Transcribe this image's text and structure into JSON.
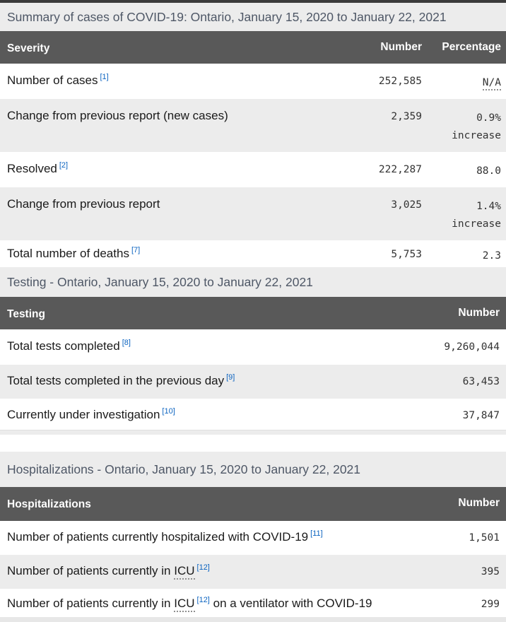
{
  "colors": {
    "header_bg": "#595959",
    "header_text": "#ffffff",
    "stripe_bg": "#ececec",
    "caption_text": "#4e5766",
    "link_blue": "#0c64c0",
    "body_text": "#1a1a1a",
    "number_text": "#333333",
    "top_strip": "#3b3b3b"
  },
  "summary_table": {
    "caption": "Summary of cases of COVID-19: Ontario, January 15, 2020 to January 22, 2021",
    "headers": {
      "col1": "Severity",
      "col2": "Number",
      "col3": "Percentage"
    },
    "rows": [
      {
        "label": "Number of cases",
        "footnote": "[1]",
        "number": "252,585",
        "percentage": "N/A"
      },
      {
        "label": "Change from previous report (new cases)",
        "number": "2,359",
        "percentage": "0.9%",
        "percentage_note": "increase"
      },
      {
        "label": "Resolved",
        "footnote": "[2]",
        "number": "222,287",
        "percentage": "88.0"
      },
      {
        "label": "Change from previous report",
        "number": "3,025",
        "percentage": "1.4%",
        "percentage_note": "increase"
      },
      {
        "label": "Total number of deaths",
        "footnote": "[7]",
        "number": "5,753",
        "percentage": "2.3"
      }
    ]
  },
  "testing_table": {
    "section_title": "Testing - Ontario, January 15, 2020 to January 22, 2021",
    "headers": {
      "col1": "Testing",
      "col2": "Number"
    },
    "rows": [
      {
        "label": "Total tests completed",
        "footnote": "[8]",
        "number": "9,260,044"
      },
      {
        "label": "Total tests completed in the previous day",
        "footnote": "[9]",
        "number": "63,453"
      },
      {
        "label": "Currently under investigation",
        "footnote": "[10]",
        "number": "37,847"
      }
    ]
  },
  "hospitalizations_table": {
    "section_title": "Hospitalizations - Ontario, January 15, 2020 to January 22, 2021",
    "headers": {
      "col1": "Hospitalizations",
      "col2": "Number"
    },
    "rows": [
      {
        "label": "Number of patients currently hospitalized with COVID-19",
        "footnote": "[11]",
        "number": "1,501"
      },
      {
        "label_pre": "Number of patients currently in",
        "abbr": "ICU",
        "footnote": "[12]",
        "number": "395"
      },
      {
        "label_pre": "Number of patients currently in",
        "abbr": "ICU",
        "footnote": "[12]",
        "label_post": "on a ventilator with COVID-19",
        "number": "299"
      }
    ]
  }
}
